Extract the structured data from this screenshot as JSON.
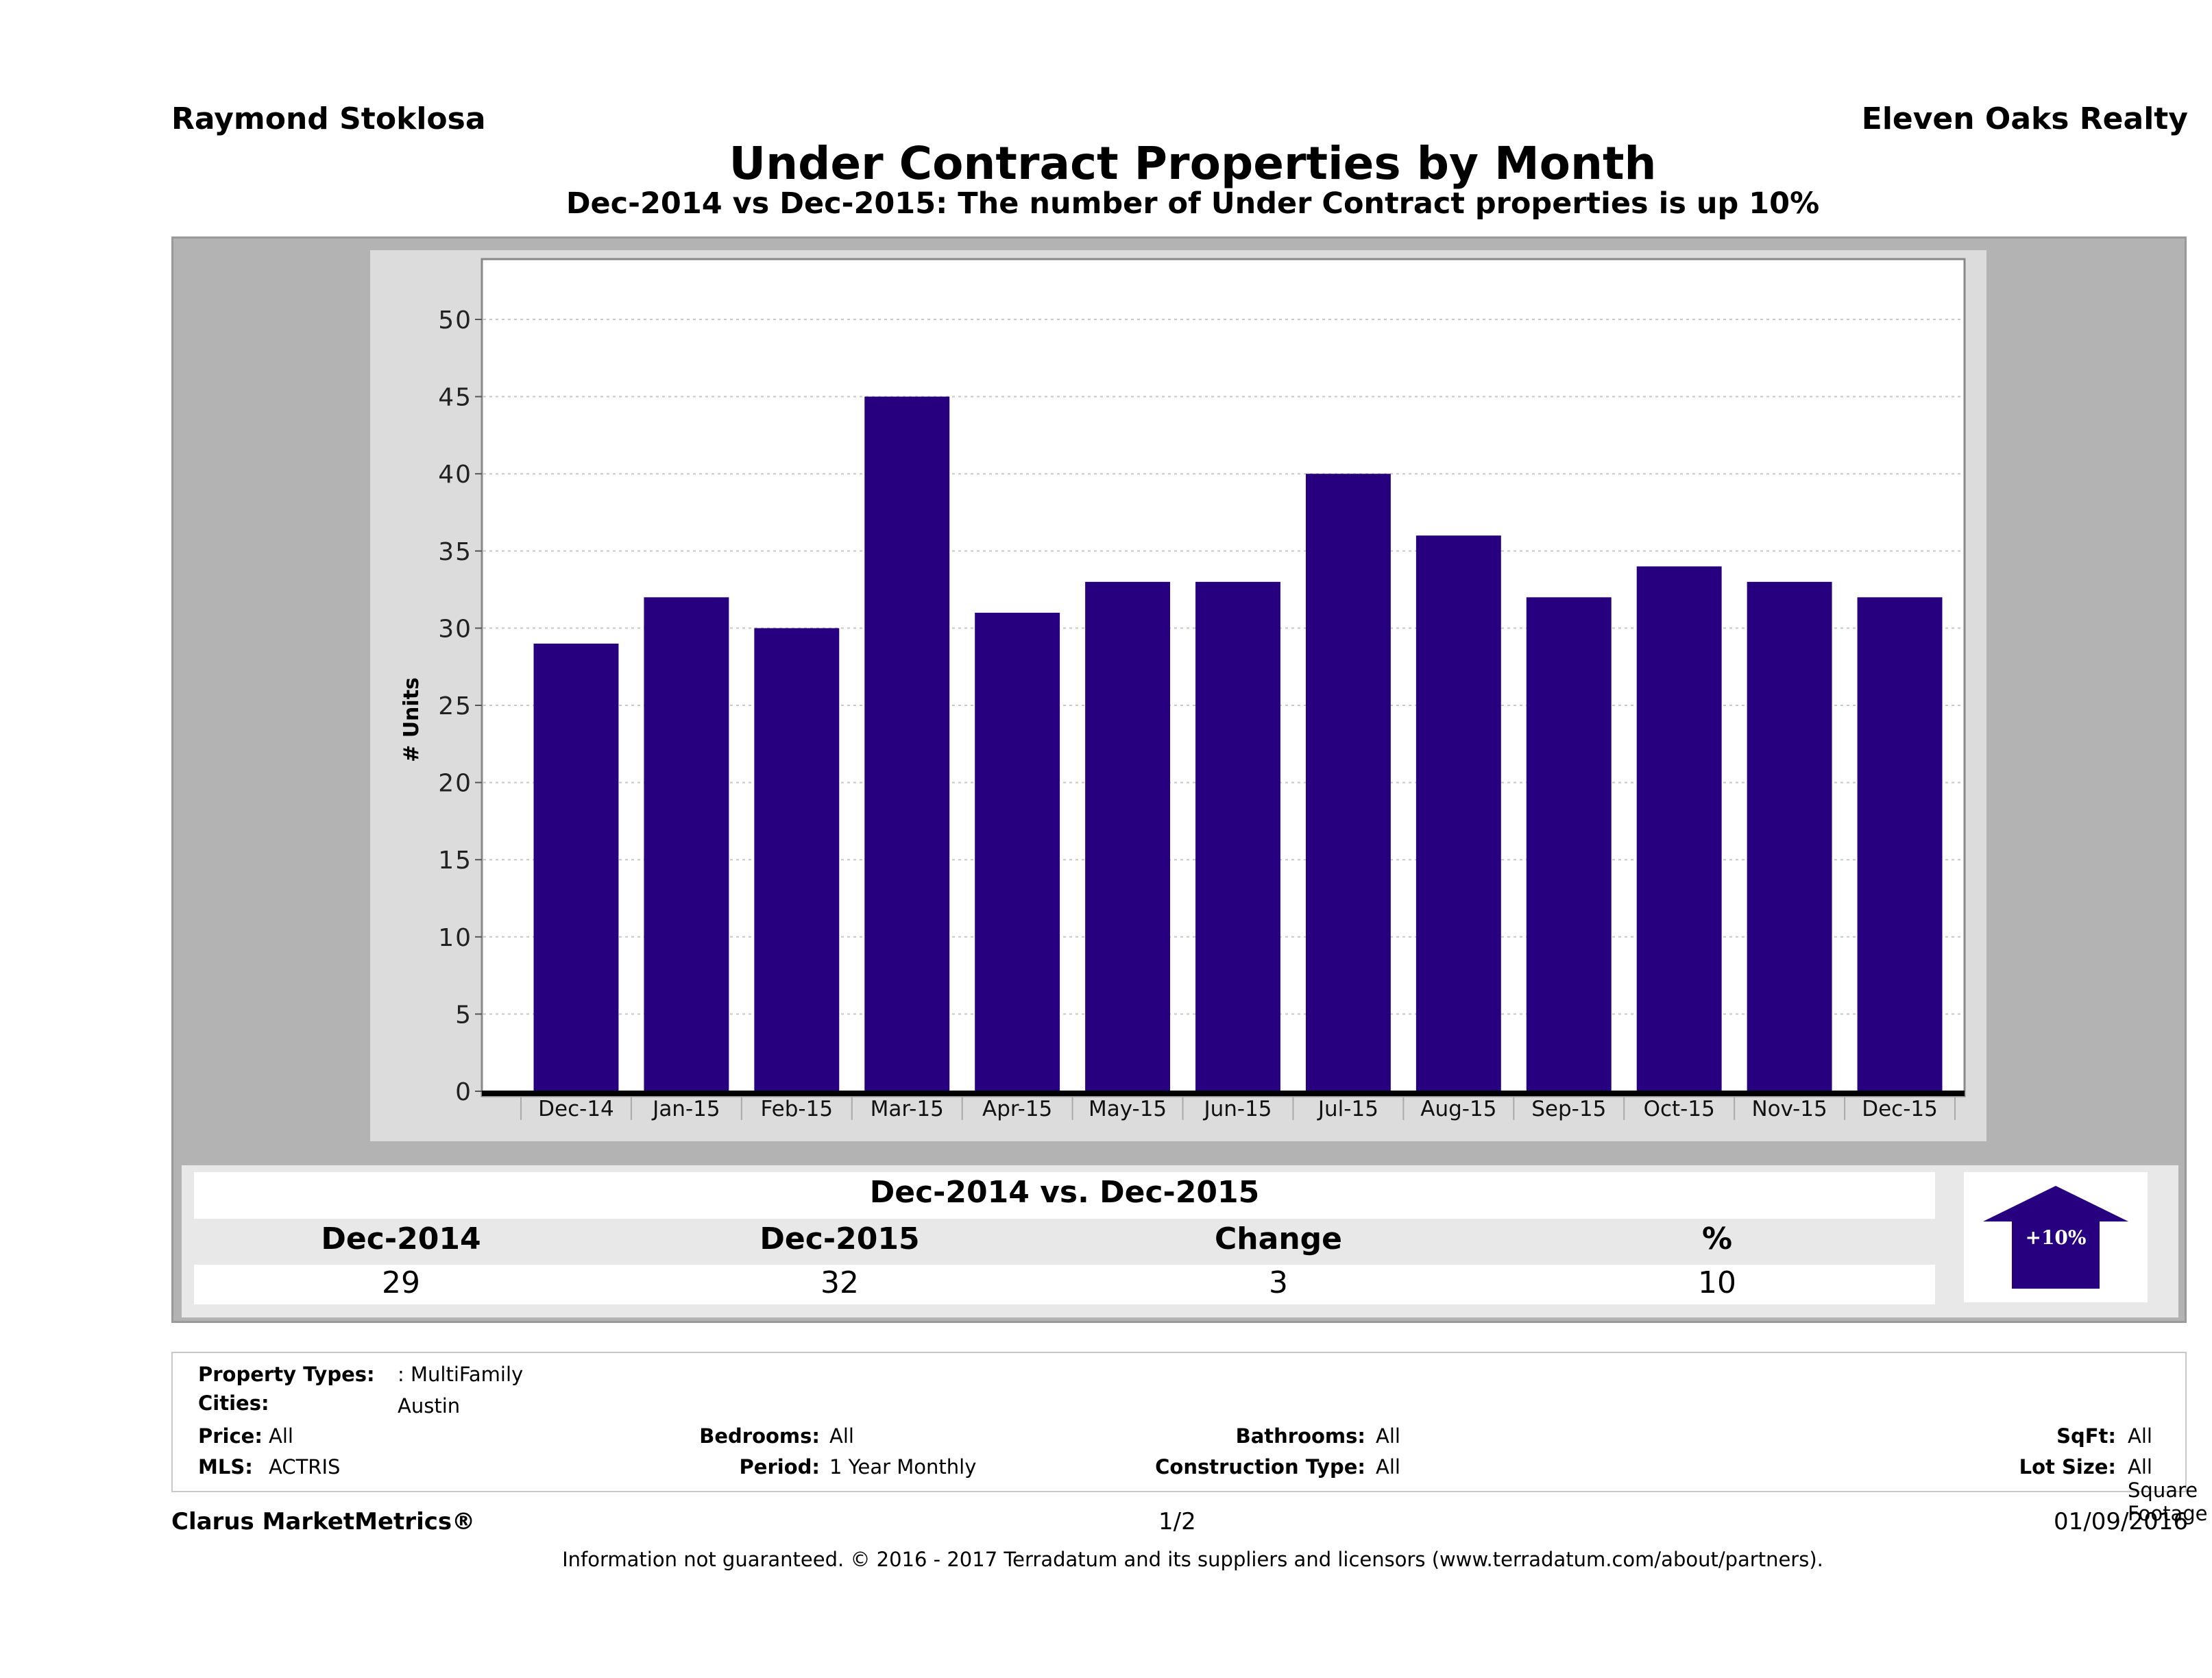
{
  "header": {
    "agent_name": "Raymond Stoklosa",
    "company_name": "Eleven Oaks Realty",
    "title": "Under Contract Properties by Month",
    "subtitle": "Dec-2014 vs Dec-2015: The number of Under Contract  properties is up 10%"
  },
  "colors": {
    "bar": "#26007f",
    "frame": "#b3b3b3",
    "chart_panel": "#dcdcdc",
    "plot_bg": "#ffffff",
    "gridline": "#c8c8c8"
  },
  "chart_data": {
    "type": "bar",
    "title": "Under Contract Properties by Month",
    "xlabel": "",
    "ylabel": "# Units",
    "categories": [
      "Dec-14",
      "Jan-15",
      "Feb-15",
      "Mar-15",
      "Apr-15",
      "May-15",
      "Jun-15",
      "Jul-15",
      "Aug-15",
      "Sep-15",
      "Oct-15",
      "Nov-15",
      "Dec-15"
    ],
    "values": [
      29,
      32,
      30,
      45,
      31,
      33,
      33,
      40,
      36,
      32,
      34,
      33,
      32
    ],
    "ylim": [
      0,
      50
    ],
    "yticks": [
      0,
      5,
      10,
      15,
      20,
      25,
      30,
      35,
      40,
      45,
      50
    ],
    "grid": true,
    "legend": "none"
  },
  "summary": {
    "title": "Dec-2014 vs. Dec-2015",
    "columns": [
      {
        "header": "Dec-2014",
        "value": "29"
      },
      {
        "header": "Dec-2015",
        "value": "32"
      },
      {
        "header": "Change",
        "value": "3"
      },
      {
        "header": "%",
        "value": "10"
      }
    ],
    "arrow": {
      "direction": "up",
      "label": "+10%"
    }
  },
  "details": {
    "property_types": {
      "label": "Property Types:",
      "value": ": MultiFamily"
    },
    "cities": {
      "label": "Cities:",
      "value": "Austin"
    },
    "price": {
      "label": "Price:",
      "value": "All"
    },
    "bedrooms": {
      "label": "Bedrooms:",
      "value": "All"
    },
    "bathrooms": {
      "label": "Bathrooms:",
      "value": "All"
    },
    "sqft": {
      "label": "SqFt:",
      "value": "All"
    },
    "mls": {
      "label": "MLS:",
      "value": "ACTRIS"
    },
    "period": {
      "label": "Period:",
      "value": "1 Year Monthly"
    },
    "construction_type": {
      "label": "Construction Type:",
      "value": "All"
    },
    "lot_size": {
      "label": "Lot Size:",
      "value": "All Square Footage"
    }
  },
  "footer": {
    "brand": "Clarus MarketMetrics®",
    "page": "1/2",
    "date": "01/09/2016",
    "disclaimer": "Information not guaranteed. © 2016 - 2017 Terradatum and its suppliers and licensors (www.terradatum.com/about/partners)."
  }
}
